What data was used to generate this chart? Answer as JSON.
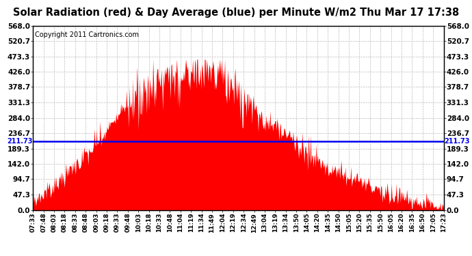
{
  "title": "Solar Radiation (red) & Day Average (blue) per Minute W/m2 Thu Mar 17 17:38",
  "copyright": "Copyright 2011 Cartronics.com",
  "day_average": 211.73,
  "ylim": [
    0,
    568.0
  ],
  "yticks": [
    0.0,
    47.3,
    94.7,
    142.0,
    189.3,
    236.7,
    284.0,
    331.3,
    378.7,
    426.0,
    473.3,
    520.7,
    568.0
  ],
  "bar_color": "#FF0000",
  "avg_line_color": "#0000EE",
  "background_color": "#FFFFFF",
  "grid_color": "#BBBBBB",
  "title_fontsize": 10.5,
  "copyright_fontsize": 7,
  "x_label_fontsize": 6.5,
  "y_label_fontsize": 7.5,
  "avg_label_fontsize": 7,
  "xtick_labels": [
    "07:33",
    "07:48",
    "08:03",
    "08:18",
    "08:33",
    "08:48",
    "09:03",
    "09:18",
    "09:33",
    "09:48",
    "10:03",
    "10:18",
    "10:33",
    "10:48",
    "11:04",
    "11:19",
    "11:34",
    "11:49",
    "12:04",
    "12:19",
    "12:34",
    "12:49",
    "13:04",
    "13:19",
    "13:34",
    "13:50",
    "14:05",
    "14:20",
    "14:35",
    "14:50",
    "15:05",
    "15:20",
    "15:35",
    "15:50",
    "16:05",
    "16:20",
    "16:35",
    "16:50",
    "17:05",
    "17:23"
  ]
}
